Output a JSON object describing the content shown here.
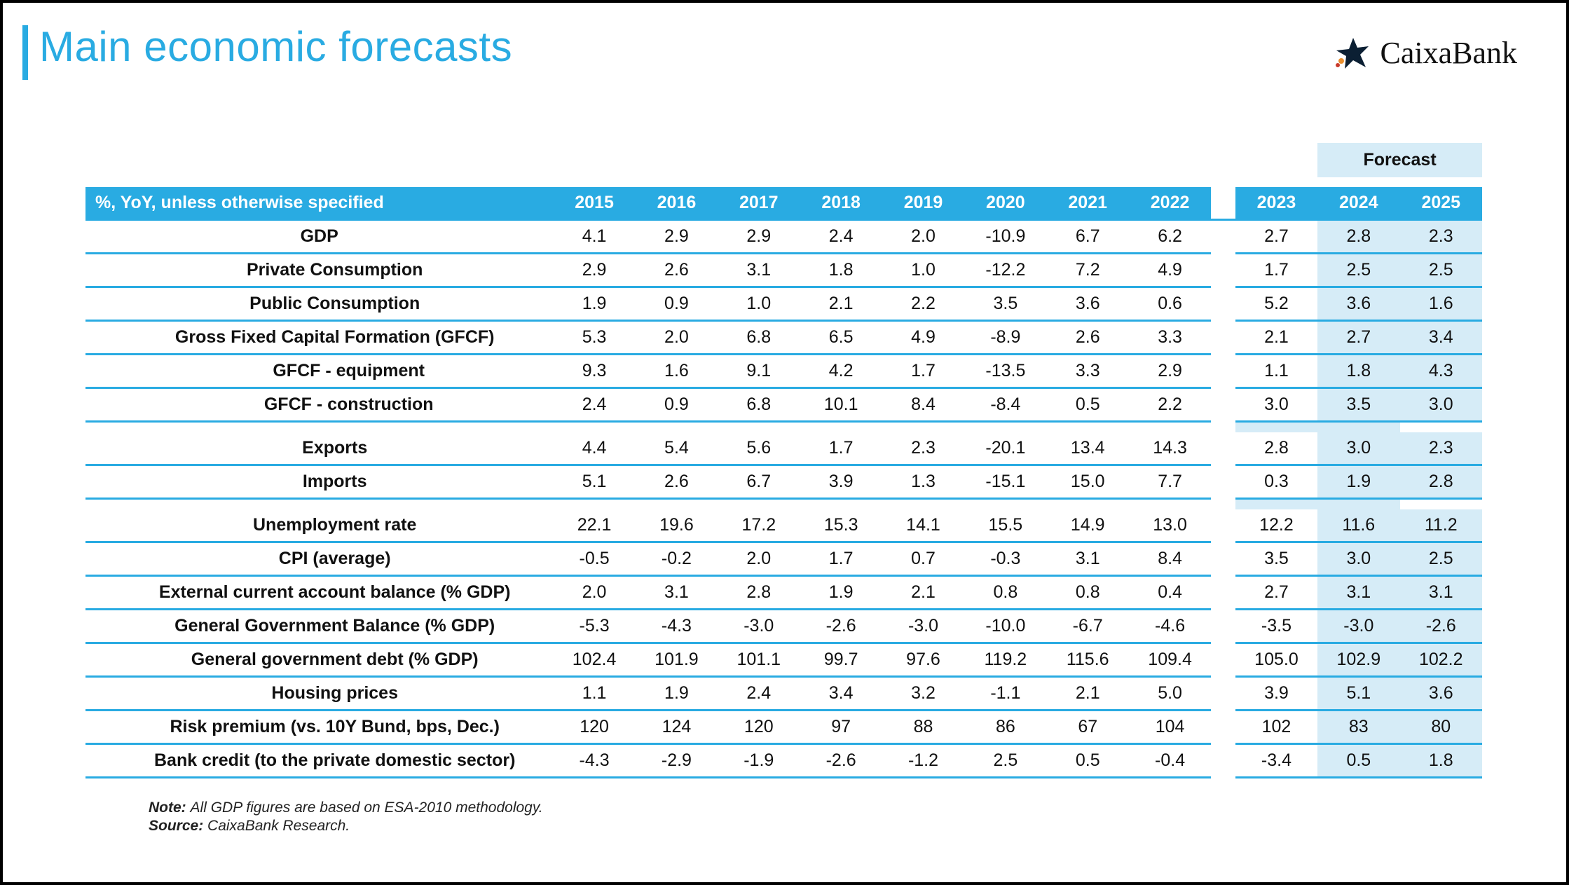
{
  "brand": {
    "name": "CaixaBank"
  },
  "title": "Main economic forecasts",
  "forecast_label": "Forecast",
  "header": {
    "label": "%, YoY, unless otherwise specified",
    "hist_years": [
      "2015",
      "2016",
      "2017",
      "2018",
      "2019",
      "2020",
      "2021",
      "2022"
    ],
    "fcst_years": [
      "2023",
      "2024",
      "2025"
    ]
  },
  "rows": [
    {
      "label": "GDP",
      "indent": 0,
      "h": [
        "4.1",
        "2.9",
        "2.9",
        "2.4",
        "2.0",
        "-10.9",
        "6.7",
        "6.2"
      ],
      "f": [
        "2.7",
        "2.8",
        "2.3"
      ]
    },
    {
      "label": "Private Consumption",
      "indent": 1,
      "h": [
        "2.9",
        "2.6",
        "3.1",
        "1.8",
        "1.0",
        "-12.2",
        "7.2",
        "4.9"
      ],
      "f": [
        "1.7",
        "2.5",
        "2.5"
      ]
    },
    {
      "label": "Public Consumption",
      "indent": 1,
      "h": [
        "1.9",
        "0.9",
        "1.0",
        "2.1",
        "2.2",
        "3.5",
        "3.6",
        "0.6"
      ],
      "f": [
        "5.2",
        "3.6",
        "1.6"
      ]
    },
    {
      "label": "Gross Fixed Capital Formation (GFCF)",
      "indent": 1,
      "h": [
        "5.3",
        "2.0",
        "6.8",
        "6.5",
        "4.9",
        "-8.9",
        "2.6",
        "3.3"
      ],
      "f": [
        "2.1",
        "2.7",
        "3.4"
      ]
    },
    {
      "label": "GFCF - equipment",
      "indent": 2,
      "h": [
        "9.3",
        "1.6",
        "9.1",
        "4.2",
        "1.7",
        "-13.5",
        "3.3",
        "2.9"
      ],
      "f": [
        "1.1",
        "1.8",
        "4.3"
      ]
    },
    {
      "label": "GFCF - construction",
      "indent": 2,
      "h": [
        "2.4",
        "0.9",
        "6.8",
        "10.1",
        "8.4",
        "-8.4",
        "0.5",
        "2.2"
      ],
      "f": [
        "3.0",
        "3.5",
        "3.0"
      ]
    },
    {
      "spacer": true
    },
    {
      "label": "Exports",
      "indent": 1,
      "h": [
        "4.4",
        "5.4",
        "5.6",
        "1.7",
        "2.3",
        "-20.1",
        "13.4",
        "14.3"
      ],
      "f": [
        "2.8",
        "3.0",
        "2.3"
      ]
    },
    {
      "label": "Imports",
      "indent": 1,
      "h": [
        "5.1",
        "2.6",
        "6.7",
        "3.9",
        "1.3",
        "-15.1",
        "15.0",
        "7.7"
      ],
      "f": [
        "0.3",
        "1.9",
        "2.8"
      ]
    },
    {
      "spacer": true
    },
    {
      "label": "Unemployment rate",
      "indent": 1,
      "h": [
        "22.1",
        "19.6",
        "17.2",
        "15.3",
        "14.1",
        "15.5",
        "14.9",
        "13.0"
      ],
      "f": [
        "12.2",
        "11.6",
        "11.2"
      ]
    },
    {
      "label": "CPI (average)",
      "indent": 1,
      "h": [
        "-0.5",
        "-0.2",
        "2.0",
        "1.7",
        "0.7",
        "-0.3",
        "3.1",
        "8.4"
      ],
      "f": [
        "3.5",
        "3.0",
        "2.5"
      ]
    },
    {
      "label": "External current account balance (% GDP)",
      "indent": 1,
      "h": [
        "2.0",
        "3.1",
        "2.8",
        "1.9",
        "2.1",
        "0.8",
        "0.8",
        "0.4"
      ],
      "f": [
        "2.7",
        "3.1",
        "3.1"
      ]
    },
    {
      "label": "General Government Balance (% GDP)",
      "indent": 1,
      "h": [
        "-5.3",
        "-4.3",
        "-3.0",
        "-2.6",
        "-3.0",
        "-10.0",
        "-6.7",
        "-4.6"
      ],
      "f": [
        "-3.5",
        "-3.0",
        "-2.6"
      ]
    },
    {
      "label": "General government debt (% GDP)",
      "indent": 1,
      "h": [
        "102.4",
        "101.9",
        "101.1",
        "99.7",
        "97.6",
        "119.2",
        "115.6",
        "109.4"
      ],
      "f": [
        "105.0",
        "102.9",
        "102.2"
      ]
    },
    {
      "label": "Housing prices",
      "indent": 1,
      "h": [
        "1.1",
        "1.9",
        "2.4",
        "3.4",
        "3.2",
        "-1.1",
        "2.1",
        "5.0"
      ],
      "f": [
        "3.9",
        "5.1",
        "3.6"
      ]
    },
    {
      "label": "Risk premium (vs. 10Y Bund, bps, Dec.)",
      "indent": 1,
      "h": [
        "120",
        "124",
        "120",
        "97",
        "88",
        "86",
        "67",
        "104"
      ],
      "f": [
        "102",
        "83",
        "80"
      ]
    },
    {
      "label": "Bank credit (to the private domestic sector)",
      "indent": 1,
      "h": [
        "-4.3",
        "-2.9",
        "-1.9",
        "-2.6",
        "-1.2",
        "2.5",
        "0.5",
        "-0.4"
      ],
      "f": [
        "-3.4",
        "0.5",
        "1.8"
      ]
    }
  ],
  "notes": {
    "note_label": "Note:",
    "note_text": "All GDP figures are based on ESA-2010 methodology.",
    "source_label": "Source:",
    "source_text": "CaixaBank Research."
  },
  "style": {
    "accent": "#29abe2",
    "highlight": "#d6ecf7",
    "row_border": "#29abe2",
    "text": "#111111",
    "title_fontsize": 60,
    "body_fontsize": 25
  }
}
